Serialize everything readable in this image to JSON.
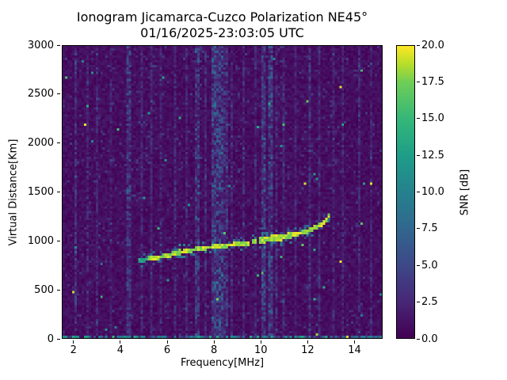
{
  "chart_data": {
    "type": "heatmap",
    "title": "Ionogram Jicamarca-Cuzco Polarization NE45°",
    "subtitle": "01/16/2025-23:03:05 UTC",
    "xlabel": "Frequency[MHz]",
    "ylabel": "Virtual Distance[Km]",
    "xlim": [
      1.5,
      15.2
    ],
    "ylim": [
      0,
      3000
    ],
    "x_ticks": [
      2,
      4,
      6,
      8,
      10,
      12,
      14
    ],
    "y_ticks": [
      0,
      500,
      1000,
      1500,
      2000,
      2500,
      3000
    ],
    "colormap": "viridis",
    "background_color": "#440154",
    "trace_color": "#fde725",
    "colorbar": {
      "label": "SNR [dB]",
      "range": [
        0,
        20
      ],
      "ticks": [
        0.0,
        2.5,
        5.0,
        7.5,
        10.0,
        12.5,
        15.0,
        17.5,
        20.0
      ]
    },
    "echo_trace": {
      "description": "F-layer ionogram echo trace, SNR ~17-20 dB",
      "points_mhz_km": [
        [
          4.75,
          795
        ],
        [
          5.0,
          805
        ],
        [
          5.5,
          825
        ],
        [
          6.0,
          850
        ],
        [
          6.5,
          878
        ],
        [
          7.0,
          903
        ],
        [
          7.5,
          922
        ],
        [
          8.0,
          938
        ],
        [
          8.5,
          952
        ],
        [
          9.0,
          963
        ],
        [
          9.5,
          978
        ],
        [
          9.9,
          1000
        ],
        [
          10.3,
          1015
        ],
        [
          10.7,
          1028
        ],
        [
          11.1,
          1042
        ],
        [
          11.5,
          1062
        ],
        [
          11.9,
          1088
        ],
        [
          12.2,
          1115
        ],
        [
          12.5,
          1150
        ],
        [
          12.7,
          1185
        ],
        [
          12.85,
          1225
        ],
        [
          12.95,
          1265
        ]
      ],
      "gaps_mhz": [
        [
          9.52,
          9.64
        ],
        [
          9.8,
          9.88
        ]
      ]
    },
    "interference_stripes_mhz": [
      [
        2.05,
        0.06,
        4
      ],
      [
        2.55,
        0.05,
        2.5
      ],
      [
        3.0,
        0.05,
        2.5
      ],
      [
        3.55,
        0.05,
        2
      ],
      [
        4.35,
        0.07,
        5
      ],
      [
        4.85,
        0.05,
        3
      ],
      [
        5.3,
        0.06,
        3
      ],
      [
        5.75,
        0.05,
        2.5
      ],
      [
        6.35,
        0.06,
        3
      ],
      [
        6.85,
        0.05,
        2.5
      ],
      [
        7.3,
        0.08,
        5
      ],
      [
        7.65,
        0.05,
        3
      ],
      [
        8.0,
        0.13,
        6
      ],
      [
        8.25,
        0.13,
        6
      ],
      [
        8.5,
        0.07,
        4
      ],
      [
        8.75,
        0.06,
        3
      ],
      [
        9.3,
        0.06,
        3
      ],
      [
        9.75,
        0.05,
        2.5
      ],
      [
        10.15,
        0.1,
        6
      ],
      [
        10.4,
        0.1,
        6
      ],
      [
        10.65,
        0.06,
        3
      ],
      [
        10.95,
        0.05,
        3
      ],
      [
        11.45,
        0.05,
        2.5
      ],
      [
        12.1,
        0.07,
        4
      ],
      [
        12.55,
        0.05,
        3
      ],
      [
        13.1,
        0.05,
        2.5
      ],
      [
        13.55,
        0.06,
        3
      ],
      [
        14.2,
        0.06,
        3
      ],
      [
        14.75,
        0.05,
        2.5
      ]
    ],
    "noise_floor_db": [
      0,
      3
    ]
  }
}
